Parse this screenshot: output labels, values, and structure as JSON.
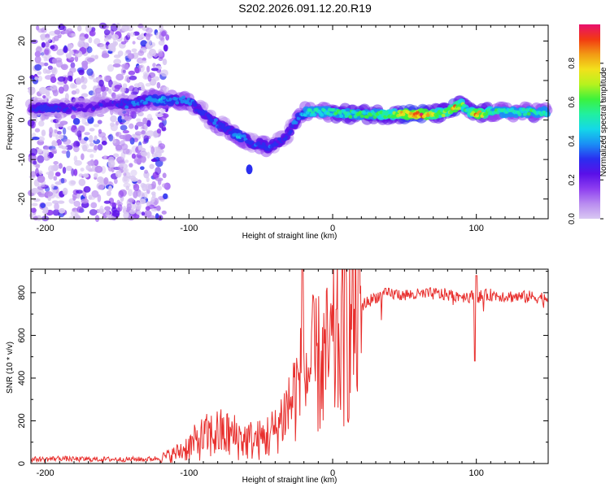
{
  "title": "S202.2026.091.12.20.R19",
  "colors": {
    "snr_line": "#e8302e",
    "colormap": [
      "#d9c8f2",
      "#b98cf0",
      "#8e3ff0",
      "#5a10e8",
      "#2a2ef0",
      "#1a8ff5",
      "#14d8e8",
      "#21f0a0",
      "#3cf23c",
      "#b7f21e",
      "#f2e11c",
      "#f29a14",
      "#f23a12",
      "#e8106e"
    ]
  },
  "chart_data": [
    {
      "type": "heatmap",
      "title": "S202.2026.091.12.20.R19",
      "xlabel": "Height of straight line (km)",
      "ylabel": "Frequency (Hz)",
      "xlim": [
        -210,
        150
      ],
      "ylim": [
        -25,
        24
      ],
      "x_ticks": [
        -200,
        -100,
        0,
        100
      ],
      "y_ticks": [
        -20,
        -10,
        0,
        10,
        20
      ],
      "colorbar": {
        "label": "Normalized spectral amplitude",
        "range": [
          0,
          1
        ],
        "ticks": [
          "0.0",
          "0.2",
          "0.4",
          "0.6",
          "0.8"
        ],
        "tick_values": [
          0,
          0.2,
          0.4,
          0.6,
          0.8
        ]
      },
      "ridge": {
        "x": [
          -210,
          -200,
          -190,
          -180,
          -170,
          -160,
          -150,
          -140,
          -130,
          -120,
          -110,
          -100,
          -95,
          -90,
          -85,
          -80,
          -75,
          -70,
          -65,
          -60,
          -55,
          -50,
          -45,
          -40,
          -35,
          -30,
          -25,
          -20,
          -15,
          -10,
          0,
          10,
          20,
          30,
          40,
          50,
          60,
          70,
          80,
          85,
          90,
          95,
          100,
          110,
          120,
          130,
          140,
          150
        ],
        "freq": [
          3,
          3,
          3,
          3,
          3,
          4,
          4,
          4,
          5,
          5,
          5,
          5,
          3,
          2,
          0,
          -1,
          -2,
          -3,
          -4,
          -5,
          -6,
          -6,
          -7,
          -6,
          -5,
          -3,
          0,
          2,
          2,
          2,
          2,
          1.5,
          1.5,
          1.5,
          1.5,
          1.5,
          1.5,
          1.5,
          2,
          3,
          4,
          2,
          1.5,
          2,
          2,
          2,
          2,
          2
        ],
        "amplitude": [
          0.25,
          0.3,
          0.3,
          0.25,
          0.25,
          0.25,
          0.25,
          0.35,
          0.35,
          0.4,
          0.35,
          0.35,
          0.3,
          0.3,
          0.3,
          0.35,
          0.3,
          0.35,
          0.4,
          0.35,
          0.3,
          0.35,
          0.35,
          0.3,
          0.3,
          0.3,
          0.35,
          0.45,
          0.5,
          0.5,
          0.55,
          0.55,
          0.55,
          0.55,
          0.6,
          0.8,
          0.9,
          0.7,
          0.6,
          0.8,
          0.65,
          0.5,
          0.85,
          0.55,
          0.5,
          0.5,
          0.55,
          0.5
        ]
      }
    },
    {
      "type": "line",
      "xlabel": "Height of straight line (km)",
      "ylabel": "SNR (10 * v/v)",
      "xlim": [
        -210,
        150
      ],
      "ylim": [
        0,
        910
      ],
      "x_ticks": [
        -200,
        -100,
        0,
        100
      ],
      "y_ticks": [
        0,
        200,
        400,
        600,
        800
      ],
      "series": [
        {
          "name": "SNR",
          "x": [
            -210,
            -200,
            -190,
            -180,
            -170,
            -160,
            -150,
            -140,
            -130,
            -120,
            -110,
            -100,
            -90,
            -80,
            -70,
            -60,
            -50,
            -40,
            -35,
            -30,
            -25,
            -20,
            -15,
            -10,
            -5,
            0,
            5,
            10,
            15,
            20,
            25,
            30,
            35,
            40,
            50,
            60,
            70,
            80,
            90,
            100,
            110,
            120,
            130,
            140,
            150
          ],
          "values": [
            20,
            20,
            25,
            20,
            20,
            20,
            20,
            20,
            20,
            25,
            45,
            80,
            120,
            140,
            130,
            110,
            110,
            150,
            220,
            280,
            350,
            400,
            450,
            460,
            480,
            520,
            570,
            640,
            700,
            740,
            760,
            780,
            790,
            795,
            790,
            790,
            795,
            790,
            785,
            780,
            790,
            785,
            780,
            780,
            775
          ]
        }
      ]
    }
  ]
}
